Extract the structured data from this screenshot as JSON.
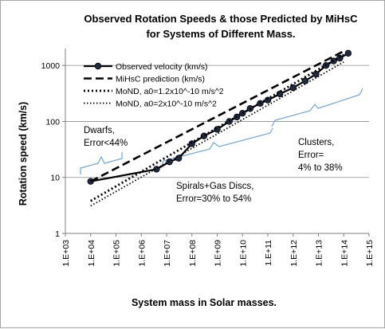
{
  "chart_data": {
    "type": "line",
    "title": "Observed Rotation Speeds & those Predicted by MiHsC for Systems of Different Mass.",
    "title_lines": [
      "Observed Rotation Speeds & those Predicted by MiHsC",
      "for Systems of Different Mass."
    ],
    "xlabel": "System mass in Solar masses.",
    "ylabel": "Rotation speed (km/s)",
    "x_scale": "log",
    "y_scale": "log",
    "xlim": [
      1000.0,
      1000000000000000.0
    ],
    "ylim": [
      1,
      2000
    ],
    "x_ticks": [
      "1.E+03",
      "1.E+04",
      "1.E+05",
      "1.E+06",
      "1.E+07",
      "1.E+08",
      "1.E+09",
      "1.E+10",
      "1.E+11",
      "1.E+12",
      "1.E+13",
      "1.E+14",
      "1.E+15"
    ],
    "y_ticks": [
      "1",
      "10",
      "100",
      "1000"
    ],
    "y_tick_values": [
      1,
      10,
      100,
      1000
    ],
    "x_tick_values": [
      1000.0,
      10000.0,
      100000.0,
      1000000.0,
      10000000.0,
      100000000.0,
      1000000000.0,
      10000000000.0,
      100000000000.0,
      1000000000000.0,
      10000000000000.0,
      100000000000000.0,
      1000000000000000.0
    ],
    "grid": "horizontal",
    "legend_position": "top-left",
    "series": [
      {
        "name": "Observed velocity (km/s)",
        "style": "solid-with-markers",
        "color": "#000000",
        "x": [
          10000.0,
          4000000.0,
          13000000.0,
          30000000.0,
          100000000.0,
          300000000.0,
          1000000000.0,
          3000000000.0,
          6000000000.0,
          10000000000.0,
          20000000000.0,
          50000000000.0,
          100000000000.0,
          300000000000.0,
          1000000000000.0,
          3000000000000.0,
          8000000000000.0,
          20000000000000.0,
          40000000000000.0,
          70000000000000.0,
          150000000000000.0
        ],
        "y": [
          8.5,
          14,
          19,
          22,
          40,
          55,
          72,
          100,
          120,
          140,
          170,
          210,
          240,
          310,
          400,
          530,
          700,
          1000,
          1200,
          1350,
          1650
        ]
      },
      {
        "name": "MiHsC prediction (km/s)",
        "style": "dashed",
        "color": "#000000",
        "x": [
          10000.0,
          100000000000000.0
        ],
        "y": [
          8.5,
          1800
        ]
      },
      {
        "name": "MoND, a0=1.2x10^-10 m/s^2",
        "style": "dotted-bold",
        "color": "#000000",
        "x": [
          10000.0,
          100000000000000.0
        ],
        "y": [
          3.8,
          1550
        ]
      },
      {
        "name": "MoND, a0=2x10^-10 m/s^2",
        "style": "dotted",
        "color": "#000000",
        "x": [
          10000.0,
          100000000000000.0
        ],
        "y": [
          3.1,
          1150
        ]
      }
    ],
    "annotations": [
      {
        "lines": [
          "Dwarfs,",
          "Error<44%"
        ]
      },
      {
        "lines": [
          "Spirals+Gas Discs,",
          "Error=30% to 54%"
        ]
      },
      {
        "lines": [
          "Clusters,",
          "Error=",
          "4% to 38%"
        ]
      }
    ],
    "bracket_color": "#6fa8dc"
  }
}
